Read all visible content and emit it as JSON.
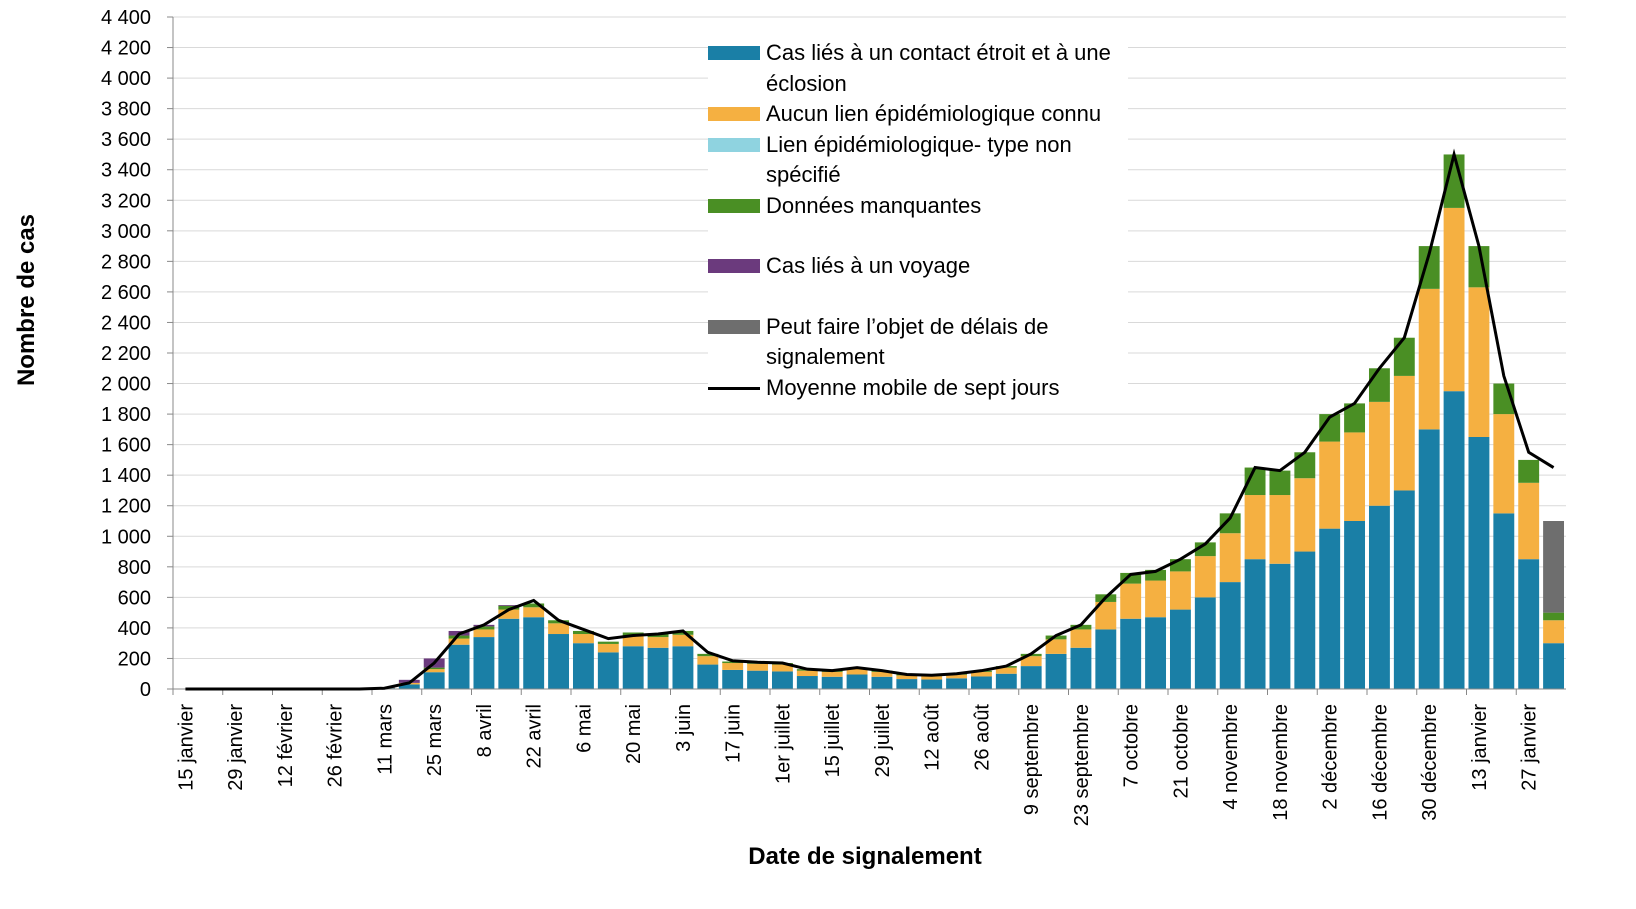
{
  "chart_data": {
    "type": "bar",
    "stacked": true,
    "ylabel": "Nombre de cas",
    "xlabel": "Date de signalement",
    "categories": [
      "15 janvier",
      null,
      "29 janvier",
      null,
      "12 février",
      null,
      "26 février",
      null,
      "11 mars",
      null,
      "25 mars",
      null,
      "8 avril",
      null,
      "22 avril",
      null,
      "6 mai",
      null,
      "20 mai",
      null,
      "3 juin",
      null,
      "17 juin",
      null,
      "1er juillet",
      null,
      "15 juillet",
      null,
      "29 juillet",
      null,
      "12 août",
      null,
      "26 août",
      null,
      "9 septembre",
      null,
      "23 septembre",
      null,
      "7 octobre",
      null,
      "21 octobre",
      null,
      "4 novembre",
      null,
      "18 novembre",
      null,
      "2 décembre",
      null,
      "16 décembre",
      null,
      "30 décembre",
      null,
      "13 janvier",
      null,
      "27 janvier",
      null
    ],
    "series": [
      {
        "name": "Cas liés à un contact étroit et à une éclosion",
        "color": "#1a7fa6",
        "values": [
          0,
          0,
          0,
          0,
          0,
          0,
          0,
          0,
          6,
          30,
          110,
          290,
          340,
          460,
          470,
          360,
          300,
          240,
          280,
          270,
          280,
          160,
          125,
          120,
          115,
          85,
          80,
          95,
          80,
          65,
          62,
          70,
          82,
          100,
          150,
          230,
          270,
          390,
          460,
          470,
          520,
          600,
          700,
          850,
          820,
          900,
          1050,
          1100,
          1200,
          1300,
          1700,
          1950,
          1650,
          1150,
          850,
          300
        ]
      },
      {
        "name": "Aucun lien épidémiologique connu",
        "color": "#f5b041",
        "values": [
          0,
          0,
          0,
          0,
          0,
          0,
          0,
          0,
          2,
          10,
          20,
          40,
          50,
          60,
          65,
          70,
          60,
          55,
          70,
          70,
          75,
          55,
          45,
          45,
          45,
          35,
          32,
          37,
          32,
          24,
          22,
          24,
          30,
          40,
          65,
          95,
          120,
          180,
          230,
          240,
          250,
          270,
          320,
          420,
          450,
          480,
          570,
          580,
          680,
          750,
          920,
          1200,
          980,
          650,
          500,
          150
        ]
      },
      {
        "name": "Lien épidémiologique- type non spécifié",
        "color": "#8fd3e0",
        "values": [
          0,
          0,
          0,
          0,
          0,
          0,
          0,
          0,
          0,
          0,
          0,
          0,
          0,
          0,
          0,
          0,
          0,
          0,
          0,
          0,
          0,
          0,
          0,
          0,
          0,
          0,
          0,
          0,
          0,
          0,
          0,
          0,
          0,
          0,
          0,
          0,
          0,
          0,
          0,
          0,
          0,
          0,
          0,
          0,
          0,
          0,
          0,
          0,
          0,
          0,
          0,
          0,
          0,
          0,
          0,
          0
        ]
      },
      {
        "name": "Données manquantes",
        "color": "#4a8f24",
        "values": [
          0,
          0,
          0,
          0,
          0,
          0,
          0,
          0,
          0,
          0,
          10,
          20,
          20,
          25,
          25,
          20,
          20,
          15,
          20,
          20,
          25,
          15,
          10,
          10,
          10,
          10,
          8,
          8,
          8,
          6,
          6,
          6,
          8,
          10,
          15,
          25,
          30,
          50,
          70,
          70,
          80,
          90,
          130,
          180,
          160,
          170,
          180,
          190,
          220,
          250,
          280,
          350,
          270,
          200,
          150,
          50
        ]
      },
      {
        "name": "Cas liés à un voyage",
        "color": "#6b3a7d",
        "values": [
          0,
          0,
          0,
          0,
          0,
          0,
          0,
          0,
          2,
          20,
          60,
          30,
          10,
          5,
          0,
          0,
          0,
          0,
          0,
          0,
          0,
          0,
          0,
          0,
          0,
          0,
          0,
          0,
          0,
          0,
          0,
          0,
          0,
          0,
          0,
          0,
          0,
          0,
          0,
          0,
          0,
          0,
          0,
          0,
          0,
          0,
          0,
          0,
          0,
          0,
          0,
          0,
          0,
          0,
          0,
          0
        ]
      },
      {
        "name": "Peut faire l’objet de délais de signalement",
        "color": "#6e6e6e",
        "values": [
          0,
          0,
          0,
          0,
          0,
          0,
          0,
          0,
          0,
          0,
          0,
          0,
          0,
          0,
          0,
          0,
          0,
          0,
          0,
          0,
          0,
          0,
          0,
          0,
          0,
          0,
          0,
          0,
          0,
          0,
          0,
          0,
          0,
          0,
          0,
          0,
          0,
          0,
          0,
          0,
          0,
          0,
          0,
          0,
          0,
          0,
          0,
          0,
          0,
          0,
          0,
          0,
          0,
          0,
          0,
          600
        ]
      },
      {
        "name": "Moyenne mobile de sept jours",
        "color": "#000000",
        "type": "line",
        "values": [
          0,
          0,
          0,
          0,
          0,
          0,
          0,
          0,
          5,
          40,
          170,
          360,
          420,
          520,
          580,
          450,
          390,
          330,
          350,
          360,
          380,
          240,
          185,
          175,
          170,
          130,
          120,
          140,
          120,
          95,
          90,
          100,
          120,
          150,
          230,
          350,
          420,
          600,
          750,
          770,
          850,
          950,
          1120,
          1450,
          1430,
          1550,
          1780,
          1870,
          2100,
          2300,
          2850,
          3500,
          2900,
          2050,
          1550,
          1450
        ]
      }
    ],
    "ylim": [
      0,
      4400
    ],
    "yticks": [
      0,
      200,
      400,
      600,
      800,
      {
        "value": 1000,
        "label": "1 000"
      },
      {
        "value": 1200,
        "label": "1 200"
      },
      {
        "value": 1400,
        "label": "1 400"
      },
      {
        "value": 1600,
        "label": "1 600"
      },
      {
        "value": 1800,
        "label": "1 800"
      },
      {
        "value": 2000,
        "label": "2 000"
      },
      {
        "value": 2200,
        "label": "2 200"
      },
      {
        "value": 2400,
        "label": "2 400"
      },
      {
        "value": 2600,
        "label": "2 600"
      },
      {
        "value": 2800,
        "label": "2 800"
      },
      {
        "value": 3000,
        "label": "3 000"
      },
      {
        "value": 3200,
        "label": "3 200"
      },
      {
        "value": 3400,
        "label": "3 400"
      },
      {
        "value": 3600,
        "label": "3 600"
      },
      {
        "value": 3800,
        "label": "3 800"
      },
      {
        "value": 4000,
        "label": "4 000"
      },
      {
        "value": 4200,
        "label": "4 200"
      },
      {
        "value": 4400,
        "label": "4 400"
      }
    ],
    "grid": true
  }
}
